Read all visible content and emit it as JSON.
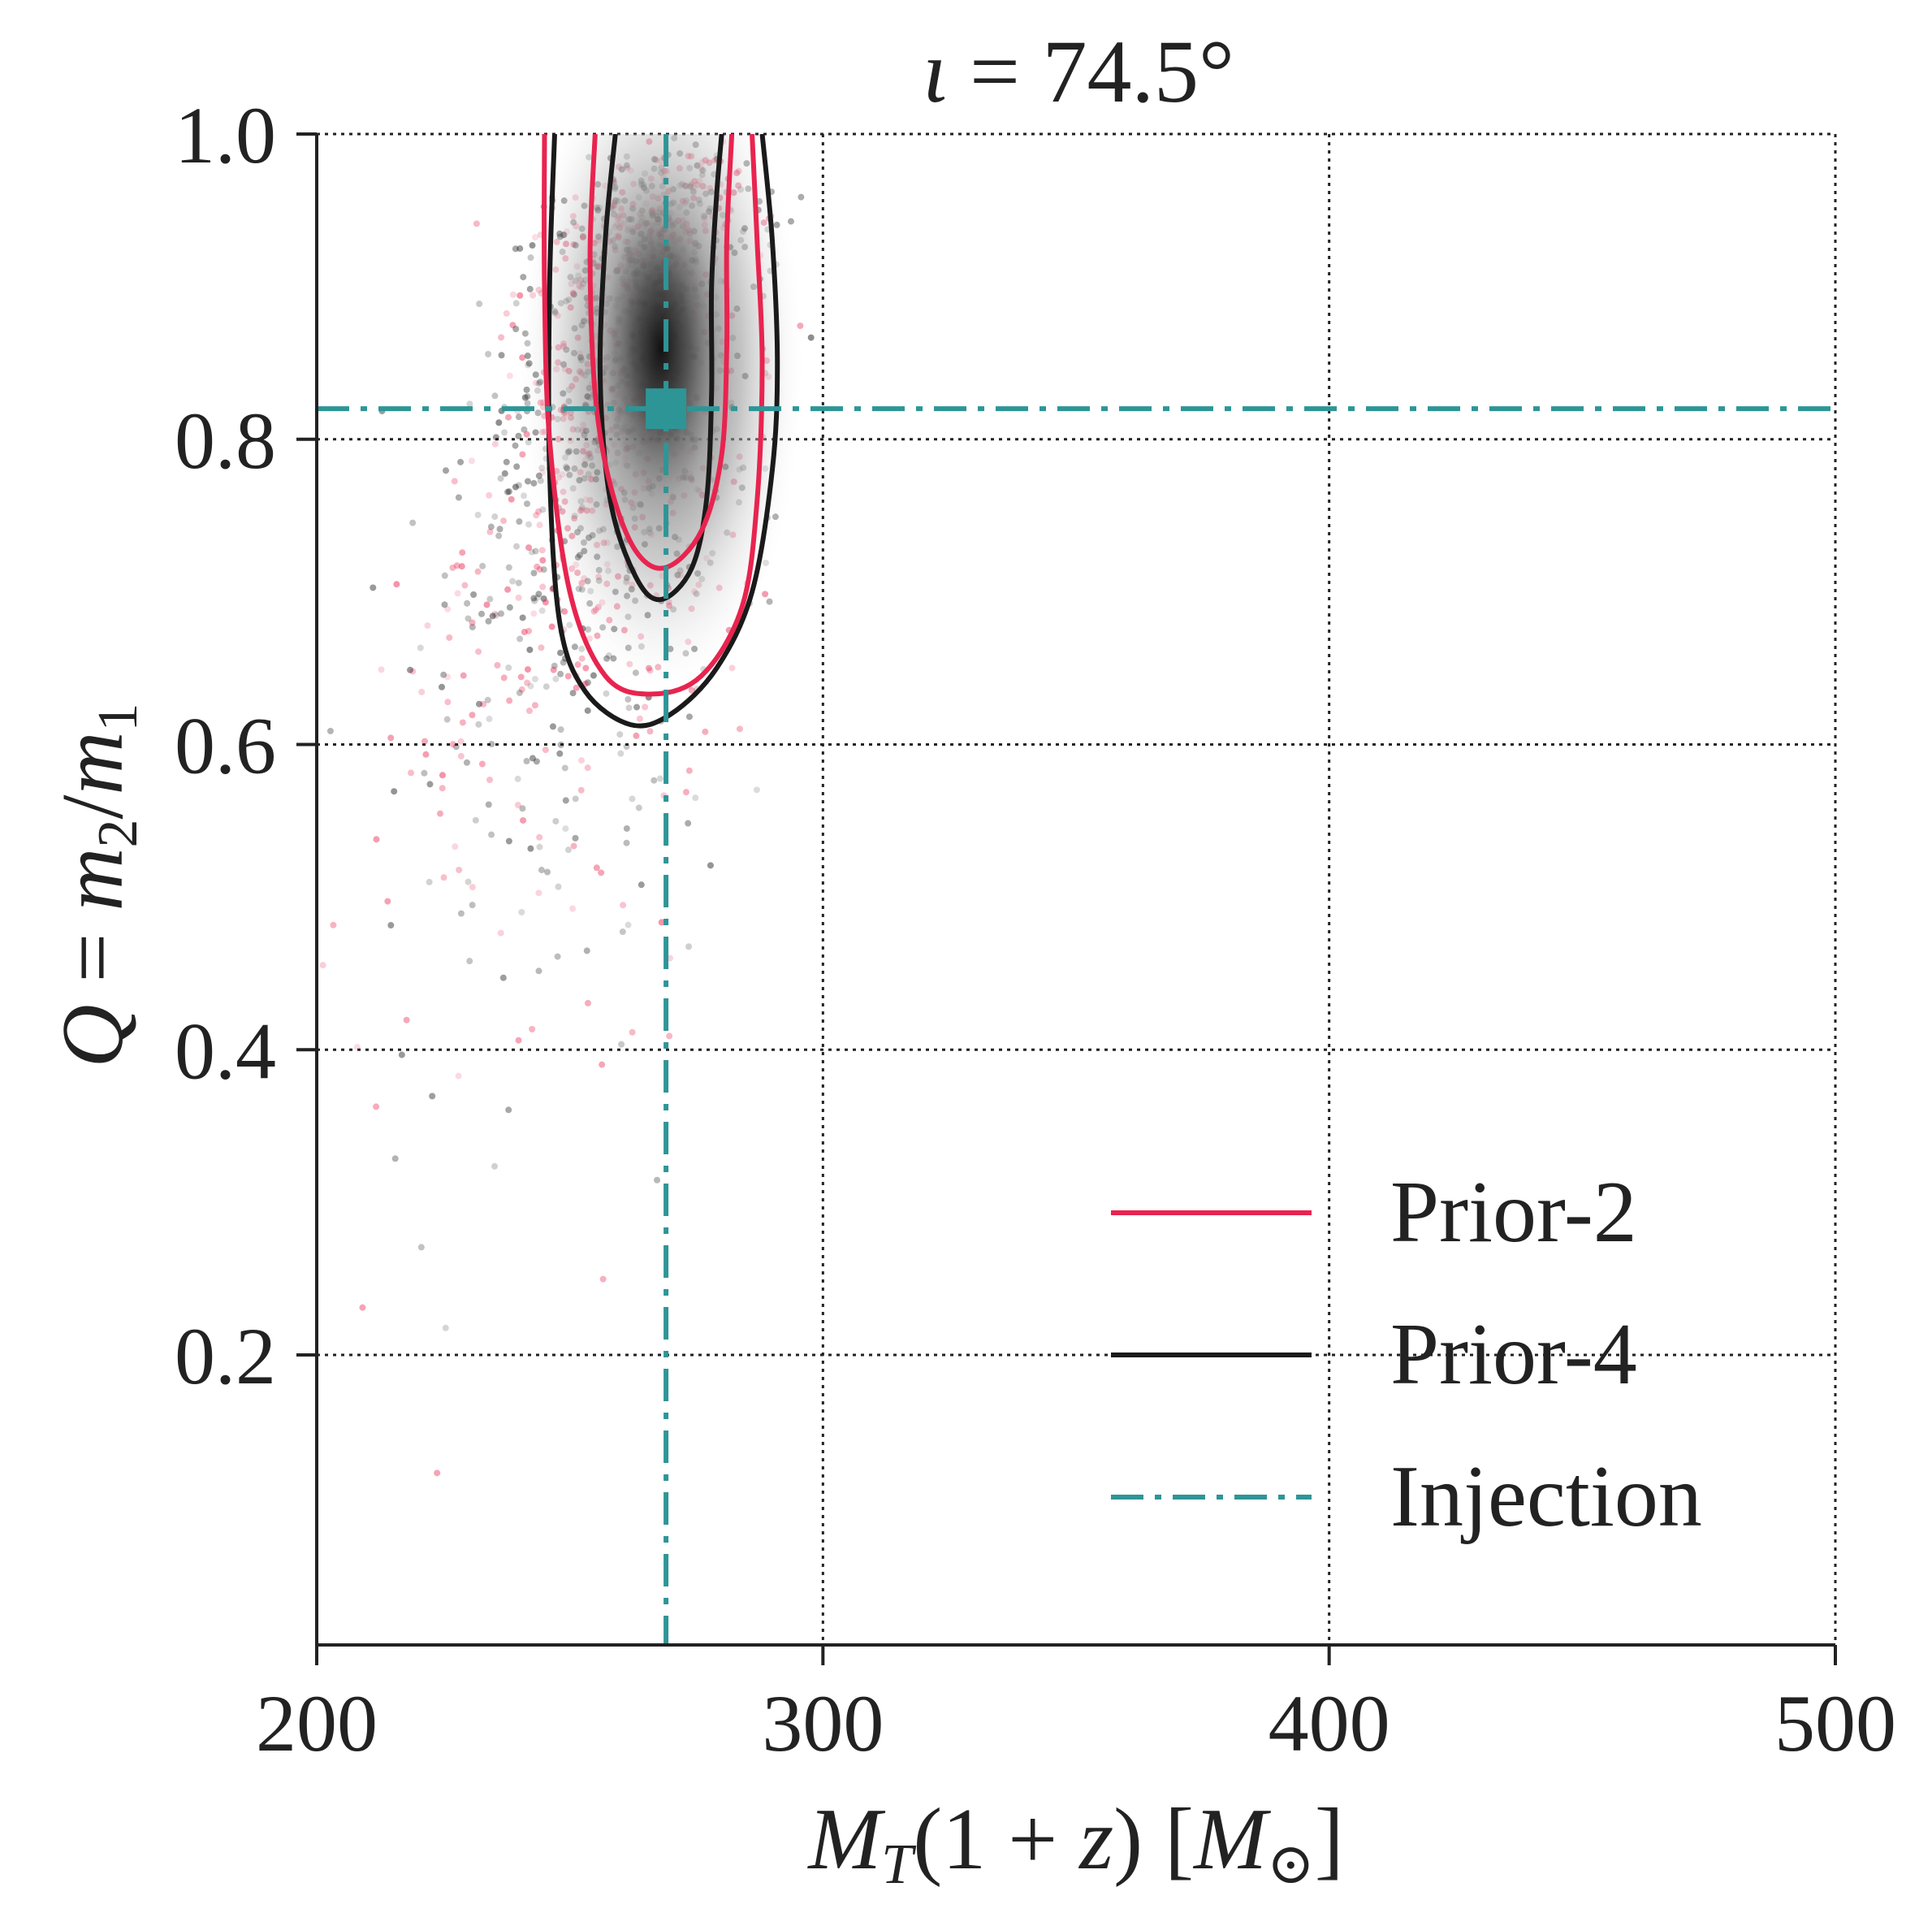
{
  "chart_data": {
    "type": "scatter",
    "title": "ι = 74.5°",
    "title_parts": {
      "symbol": "ι",
      "eq": " = ",
      "value": "74.5°"
    },
    "xlabel": "M_T(1 + z) [M_⊙]",
    "xlabel_parts": {
      "M": "M",
      "sub": "T",
      "rest": "(1 + ",
      "z": "z",
      "close": ") [",
      "M2": "M",
      "sun": "⊙",
      "end": "]"
    },
    "ylabel": "Q = m_2/m_1",
    "ylabel_parts": {
      "Q": "Q",
      "eq": " = ",
      "m": "m",
      "sub2": "2",
      "slash": "/",
      "m1": "m",
      "sub1": "1"
    },
    "xlim": [
      200,
      500
    ],
    "ylim": [
      0.01,
      1.0
    ],
    "xticks": [
      200,
      300,
      400,
      500
    ],
    "xtick_labels": [
      "200",
      "300",
      "400",
      "500"
    ],
    "yticks": [
      0.2,
      0.4,
      0.6,
      0.8,
      1.0
    ],
    "ytick_labels": [
      "0.2",
      "0.4",
      "0.6",
      "0.8",
      "1.0"
    ],
    "grid": true,
    "legend_position": "lower-right",
    "injection": {
      "x": 269,
      "y": 0.82,
      "color": "#2e9597"
    },
    "series": [
      {
        "name": "Prior-2",
        "color": "#e8244f",
        "contours": [
          [
            [
              245,
              1.0
            ],
            [
              245,
              0.9
            ],
            [
              246,
              0.8
            ],
            [
              250,
              0.7
            ],
            [
              257,
              0.645
            ],
            [
              266,
              0.633
            ],
            [
              276,
              0.645
            ],
            [
              284,
              0.69
            ],
            [
              287,
              0.76
            ],
            [
              288,
              0.85
            ],
            [
              287,
              0.93
            ],
            [
              286,
              1.0
            ]
          ],
          [
            [
              255,
              1.0
            ],
            [
              254,
              0.92
            ],
            [
              255,
              0.83
            ],
            [
              258,
              0.77
            ],
            [
              263,
              0.727
            ],
            [
              269,
              0.716
            ],
            [
              276,
              0.74
            ],
            [
              280,
              0.79
            ],
            [
              281,
              0.86
            ],
            [
              281,
              0.93
            ],
            [
              282,
              1.0
            ]
          ]
        ]
      },
      {
        "name": "Prior-4",
        "color": "#1a1a1a",
        "contours": [
          [
            [
              247,
              1.0
            ],
            [
              246,
              0.9
            ],
            [
              246,
              0.78
            ],
            [
              248,
              0.68
            ],
            [
              253,
              0.635
            ],
            [
              262,
              0.613
            ],
            [
              270,
              0.62
            ],
            [
              279,
              0.65
            ],
            [
              286,
              0.7
            ],
            [
              290,
              0.78
            ],
            [
              291,
              0.85
            ],
            [
              290,
              0.93
            ],
            [
              288,
              1.0
            ]
          ],
          [
            [
              259,
              1.0
            ],
            [
              257,
              0.93
            ],
            [
              256,
              0.84
            ],
            [
              258,
              0.76
            ],
            [
              263,
              0.71
            ],
            [
              268,
              0.695
            ],
            [
              274,
              0.715
            ],
            [
              277,
              0.76
            ],
            [
              278,
              0.83
            ],
            [
              278,
              0.9
            ],
            [
              279,
              0.96
            ],
            [
              280,
              1.0
            ]
          ]
        ]
      },
      {
        "name": "Injection",
        "color": "#2e9597"
      }
    ]
  }
}
